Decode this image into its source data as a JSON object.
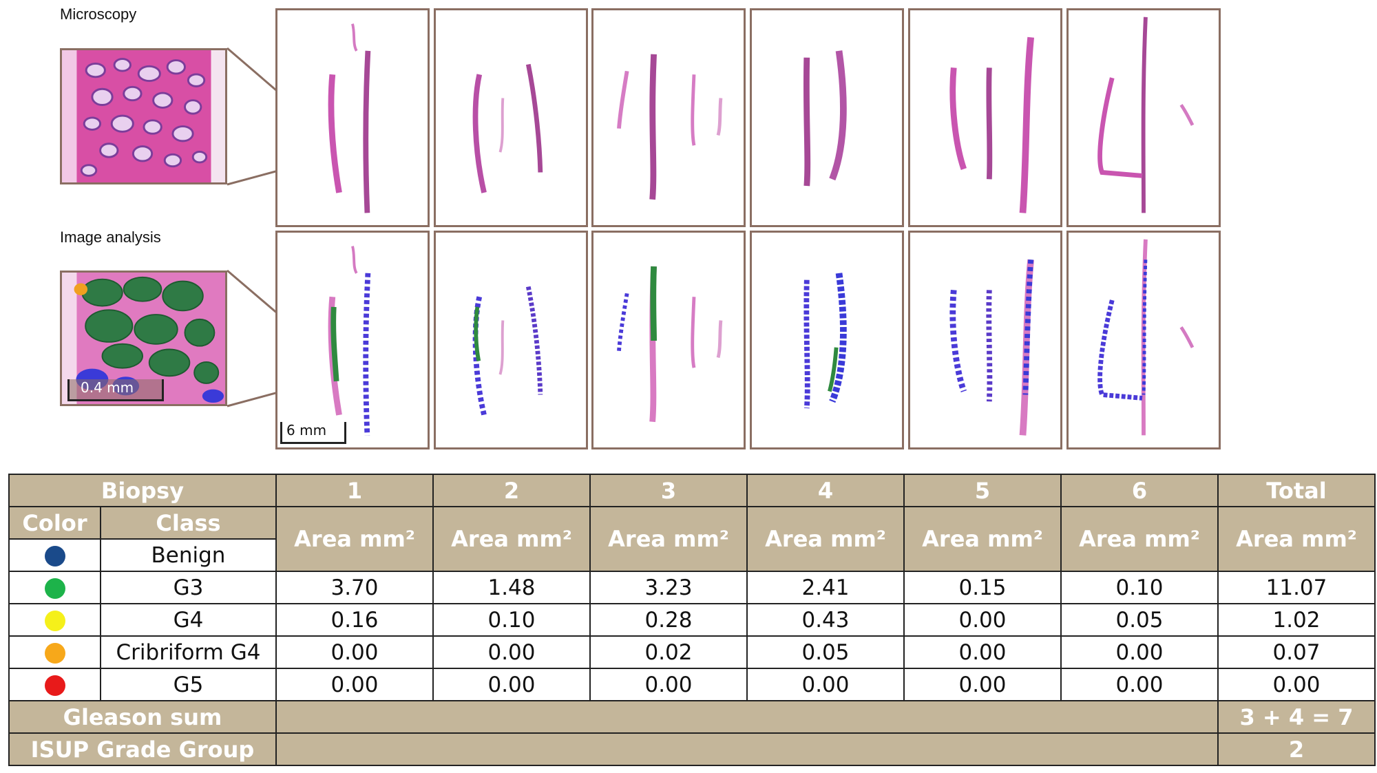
{
  "labels": {
    "microscopy": "Microscopy",
    "image_analysis": "Image analysis"
  },
  "scale": {
    "zoom": "0.4 mm",
    "panel": "6 mm"
  },
  "table": {
    "biopsy_label": "Biopsy",
    "color_label": "Color",
    "class_label": "Class",
    "columns": [
      "1",
      "2",
      "3",
      "4",
      "5",
      "6",
      "Total"
    ],
    "area_label": "Area mm²",
    "rows": [
      {
        "color": "#1a4a8a",
        "class": "Benign",
        "values": []
      },
      {
        "color": "#1db34a",
        "class": "G3",
        "values": [
          "3.70",
          "1.48",
          "3.23",
          "2.41",
          "0.15",
          "0.10",
          "11.07"
        ]
      },
      {
        "color": "#f5f01a",
        "class": "G4",
        "values": [
          "0.16",
          "0.10",
          "0.28",
          "0.43",
          "0.00",
          "0.05",
          "1.02"
        ]
      },
      {
        "color": "#f7a81a",
        "class": "Cribriform G4",
        "values": [
          "0.00",
          "0.00",
          "0.02",
          "0.05",
          "0.00",
          "0.00",
          "0.07"
        ]
      },
      {
        "color": "#e81a1a",
        "class": "G5",
        "values": [
          "0.00",
          "0.00",
          "0.00",
          "0.00",
          "0.00",
          "0.00",
          "0.00"
        ]
      }
    ],
    "gleason_label": "Gleason sum",
    "gleason_value": "3 + 4 = 7",
    "isup_label": "ISUP Grade Group",
    "isup_value": "2"
  }
}
